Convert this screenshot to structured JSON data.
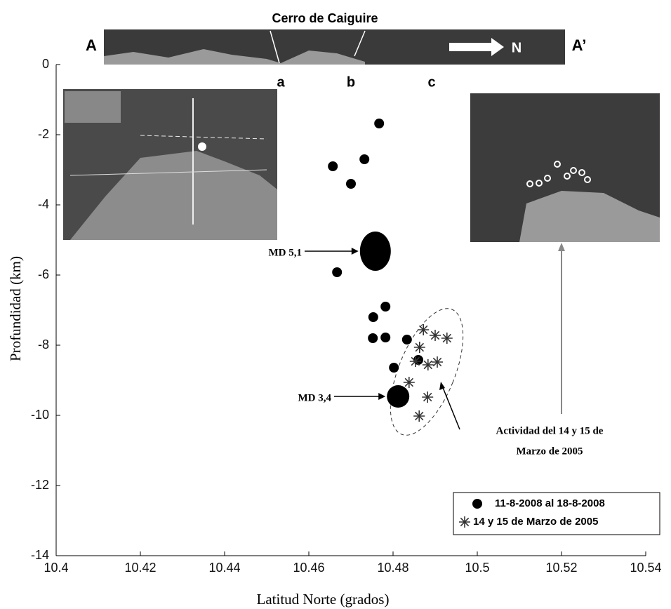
{
  "chart_data": {
    "type": "scatter",
    "xlabel": "Latitud Norte (grados)",
    "ylabel": "Profundidad (km)",
    "xlim": [
      10.4,
      10.54
    ],
    "ylim": [
      -14,
      0
    ],
    "xticks": [
      10.4,
      10.42,
      10.44,
      10.46,
      10.48,
      10.5,
      10.52,
      10.54
    ],
    "yticks": [
      0,
      -2,
      -4,
      -6,
      -8,
      -10,
      -12,
      -14
    ],
    "series": [
      {
        "name": "11-8-2008 al 18-8-2008",
        "marker": "circle",
        "color": "#000000",
        "x": [
          10.4767,
          10.4657,
          10.4732,
          10.47,
          10.4667,
          10.4753,
          10.4782,
          10.4752,
          10.4782,
          10.4833,
          10.486,
          10.4802
        ],
        "values": [
          -1.68,
          -2.9,
          -2.7,
          -3.4,
          -5.92,
          -7.2,
          -6.9,
          -7.8,
          -7.78,
          -7.84,
          -8.42,
          -8.64
        ]
      },
      {
        "name": "14 y 15 de Marzo de 2005",
        "marker": "star",
        "color": "#333333",
        "x": [
          10.4872,
          10.49,
          10.4928,
          10.4863,
          10.4853,
          10.4883,
          10.4905,
          10.4838,
          10.4882,
          10.4862
        ],
        "values": [
          -7.56,
          -7.72,
          -7.8,
          -8.06,
          -8.46,
          -8.56,
          -8.48,
          -9.06,
          -9.48,
          -10.02
        ]
      }
    ],
    "annotations": [
      {
        "text": "MD 5,1",
        "x": 10.4758,
        "y": -5.32
      },
      {
        "text": "MD 3,4",
        "x": 10.4812,
        "y": -9.46
      }
    ],
    "note": [
      "Actividad del 14 y 15 de",
      "Marzo de 2005"
    ],
    "profile": {
      "title": "Cerro de Caiguire",
      "start": "A",
      "end": "A’",
      "direction": "N",
      "points": [
        "a",
        "b",
        "c"
      ]
    },
    "legend": "lower right"
  }
}
